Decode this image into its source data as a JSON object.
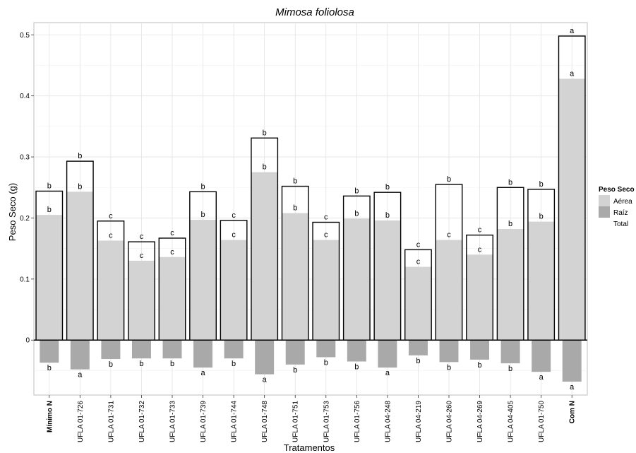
{
  "chart_data": {
    "type": "bar",
    "title": "Mimosa foliolosa",
    "xlabel": "Tratamentos",
    "ylabel": "Peso Seco (g)",
    "ylim": [
      -0.09,
      0.52
    ],
    "yticks": [
      0,
      0.1,
      0.2,
      0.3,
      0.4,
      0.5
    ],
    "ytick_labels": [
      "0",
      "0.1",
      "0.2",
      "0.3",
      "0.4",
      "0.5"
    ],
    "grid": true,
    "categories": [
      "Mínimo N",
      "UFLA 01-726",
      "UFLA 01-731",
      "UFLA 01-732",
      "UFLA 01-733",
      "UFLA 01-739",
      "UFLA 01-744",
      "UFLA 01-748",
      "UFLA 01-751",
      "UFLA 01-753",
      "UFLA 01-756",
      "UFLA 04-248",
      "UFLA 04-219",
      "UFLA 04-260",
      "UFLA 04-269",
      "UFLA 04-405",
      "UFLA 01-750",
      "Com N"
    ],
    "bold_categories": [
      "Mínimo N",
      "Com N"
    ],
    "legend": {
      "title": "Peso Seco",
      "position": "right",
      "entries": [
        "Aérea",
        "Raíz",
        "Total"
      ]
    },
    "colors": {
      "aerea": "#d3d3d3",
      "raiz": "#a9a9a9",
      "total_stroke": "#000000"
    },
    "series": [
      {
        "name": "Aérea",
        "values": [
          0.205,
          0.243,
          0.163,
          0.13,
          0.136,
          0.197,
          0.164,
          0.275,
          0.208,
          0.164,
          0.199,
          0.196,
          0.12,
          0.164,
          0.14,
          0.182,
          0.194,
          0.428
        ],
        "letters": [
          "b",
          "b",
          "c",
          "c",
          "c",
          "b",
          "c",
          "b",
          "b",
          "c",
          "b",
          "b",
          "c",
          "c",
          "c",
          "b",
          "b",
          "a"
        ]
      },
      {
        "name": "Raíz",
        "values": [
          -0.037,
          -0.048,
          -0.031,
          -0.03,
          -0.03,
          -0.045,
          -0.03,
          -0.056,
          -0.04,
          -0.028,
          -0.035,
          -0.045,
          -0.025,
          -0.036,
          -0.032,
          -0.038,
          -0.052,
          -0.068
        ],
        "letters": [
          "b",
          "a",
          "b",
          "b",
          "b",
          "a",
          "b",
          "a",
          "b",
          "b",
          "b",
          "a",
          "b",
          "b",
          "b",
          "b",
          "a",
          "a"
        ]
      },
      {
        "name": "Total",
        "values": [
          0.244,
          0.293,
          0.195,
          0.161,
          0.167,
          0.243,
          0.196,
          0.331,
          0.252,
          0.193,
          0.236,
          0.242,
          0.148,
          0.255,
          0.172,
          0.25,
          0.247,
          0.498
        ],
        "letters": [
          "b",
          "b",
          "c",
          "c",
          "c",
          "b",
          "c",
          "b",
          "b",
          "c",
          "b",
          "b",
          "c",
          "b",
          "c",
          "b",
          "b",
          "a"
        ]
      }
    ]
  }
}
